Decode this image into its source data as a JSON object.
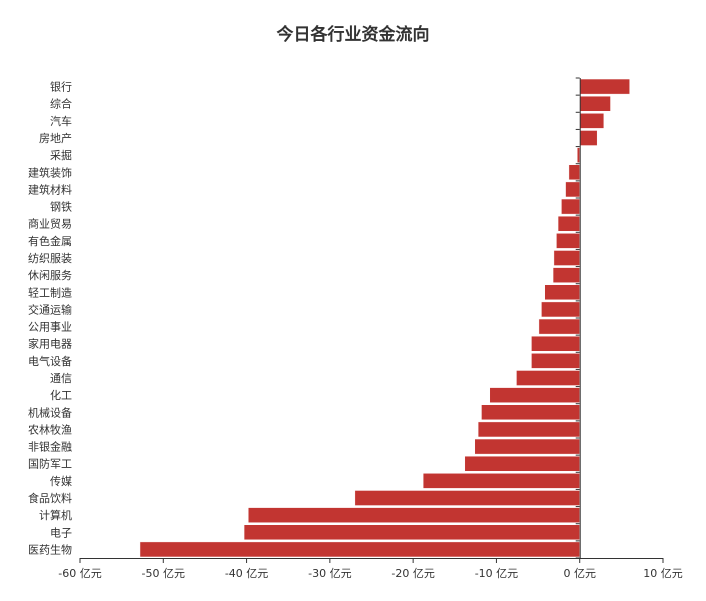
{
  "chart_data": {
    "type": "bar",
    "orientation": "horizontal",
    "title": "今日各行业资金流向",
    "categories": [
      "银行",
      "综合",
      "汽车",
      "房地产",
      "采掘",
      "建筑装饰",
      "建筑材料",
      "钢铁",
      "商业贸易",
      "有色金属",
      "纺织服装",
      "休闲服务",
      "轻工制造",
      "交通运输",
      "公用事业",
      "家用电器",
      "电气设备",
      "通信",
      "化工",
      "机械设备",
      "农林牧渔",
      "非银金融",
      "国防军工",
      "传媒",
      "食品饮料",
      "计算机",
      "电子",
      "医药生物"
    ],
    "values": [
      6.0,
      3.7,
      2.9,
      2.1,
      -0.3,
      -1.3,
      -1.7,
      -2.2,
      -2.6,
      -2.8,
      -3.1,
      -3.2,
      -4.2,
      -4.6,
      -4.9,
      -5.8,
      -5.8,
      -7.6,
      -10.8,
      -11.8,
      -12.2,
      -12.6,
      -13.8,
      -18.8,
      -27.0,
      -39.8,
      -40.3,
      -52.8
    ],
    "xlim": [
      -60,
      10
    ],
    "xticks": [
      -60,
      -50,
      -40,
      -30,
      -20,
      -10,
      0,
      10
    ],
    "unit": "亿元",
    "color": "#c23531"
  }
}
